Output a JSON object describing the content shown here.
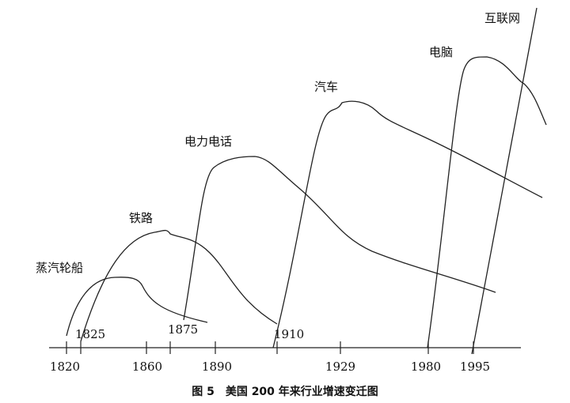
{
  "curves": [
    {
      "label": "蒸汽轮船"
    },
    {
      "label": "铁路"
    },
    {
      "label": "电力电话"
    },
    {
      "label": "汽车"
    },
    {
      "label": "电脑"
    },
    {
      "label": "互联网"
    }
  ],
  "start_labels": [
    "1825",
    "1875",
    "1910"
  ],
  "axis": {
    "labels": [
      "1820",
      "1860",
      "1890",
      "1929",
      "1980",
      "1995"
    ]
  },
  "caption": "图 5　美国 200 年来行业增速变迁图"
}
